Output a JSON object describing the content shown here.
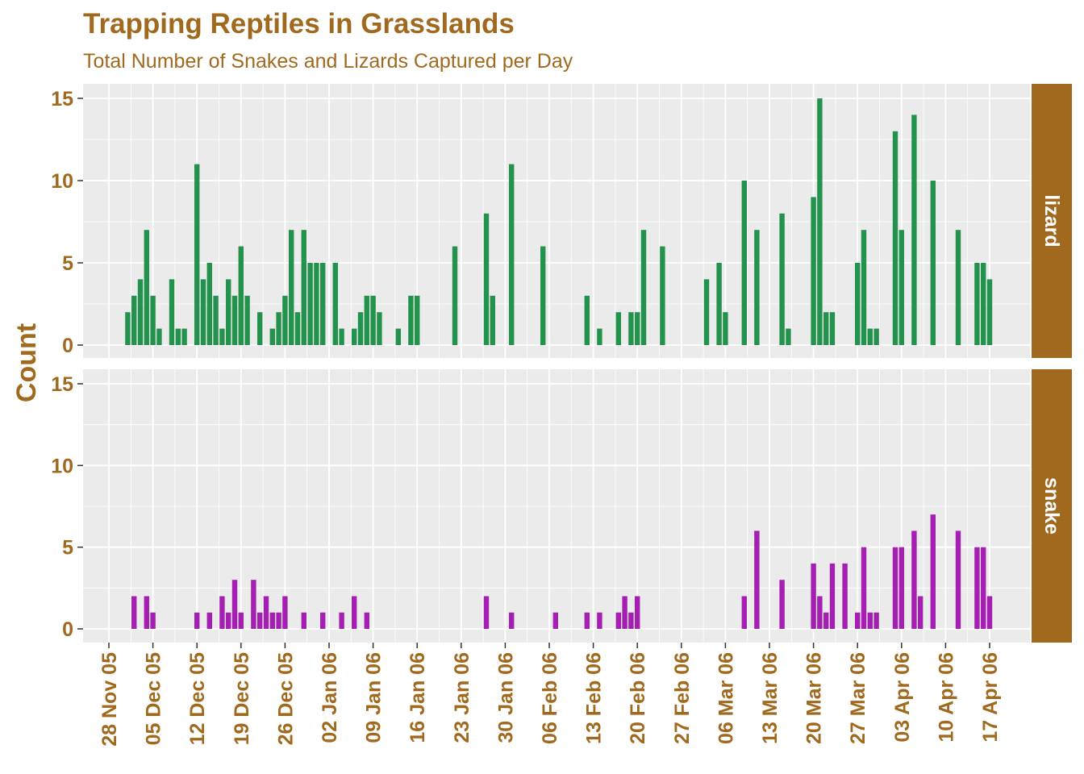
{
  "colors": {
    "text": "#A0691E",
    "panel_bg": "#EBEBEB",
    "grid": "#FFFFFF",
    "strip_bg": "#A0691E",
    "strip_text": "#FFFFFF",
    "lizard": "#22924C",
    "snake": "#A51FB2"
  },
  "chart_data": {
    "type": "bar",
    "title": "Trapping Reptiles in Grasslands",
    "subtitle": "Total Number of Snakes and Lizards Captured per Day",
    "xlabel": "",
    "ylabel": "Count",
    "ylim": [
      0,
      15
    ],
    "yticks": [
      0,
      5,
      10,
      15
    ],
    "xlim": [
      "2005-11-28",
      "2006-04-22"
    ],
    "xticks": [
      {
        "date": "2005-11-28",
        "label": "28 Nov 05"
      },
      {
        "date": "2005-12-05",
        "label": "05 Dec 05"
      },
      {
        "date": "2005-12-12",
        "label": "12 Dec 05"
      },
      {
        "date": "2005-12-19",
        "label": "19 Dec 05"
      },
      {
        "date": "2005-12-26",
        "label": "26 Dec 05"
      },
      {
        "date": "2006-01-02",
        "label": "02 Jan 06"
      },
      {
        "date": "2006-01-09",
        "label": "09 Jan 06"
      },
      {
        "date": "2006-01-16",
        "label": "16 Jan 06"
      },
      {
        "date": "2006-01-23",
        "label": "23 Jan 06"
      },
      {
        "date": "2006-01-30",
        "label": "30 Jan 06"
      },
      {
        "date": "2006-02-06",
        "label": "06 Feb 06"
      },
      {
        "date": "2006-02-13",
        "label": "13 Feb 06"
      },
      {
        "date": "2006-02-20",
        "label": "20 Feb 06"
      },
      {
        "date": "2006-02-27",
        "label": "27 Feb 06"
      },
      {
        "date": "2006-03-06",
        "label": "06 Mar 06"
      },
      {
        "date": "2006-03-13",
        "label": "13 Mar 06"
      },
      {
        "date": "2006-03-20",
        "label": "20 Mar 06"
      },
      {
        "date": "2006-03-27",
        "label": "27 Mar 06"
      },
      {
        "date": "2006-04-03",
        "label": "03 Apr 06"
      },
      {
        "date": "2006-04-10",
        "label": "10 Apr 06"
      },
      {
        "date": "2006-04-17",
        "label": "17 Apr 06"
      }
    ],
    "grid": true,
    "facets": [
      {
        "name": "lizard",
        "color_key": "lizard",
        "points": [
          [
            "2005-12-01",
            2
          ],
          [
            "2005-12-02",
            3
          ],
          [
            "2005-12-03",
            4
          ],
          [
            "2005-12-04",
            7
          ],
          [
            "2005-12-05",
            3
          ],
          [
            "2005-12-06",
            1
          ],
          [
            "2005-12-08",
            4
          ],
          [
            "2005-12-09",
            1
          ],
          [
            "2005-12-10",
            1
          ],
          [
            "2005-12-12",
            11
          ],
          [
            "2005-12-13",
            4
          ],
          [
            "2005-12-14",
            5
          ],
          [
            "2005-12-15",
            3
          ],
          [
            "2005-12-16",
            1
          ],
          [
            "2005-12-17",
            4
          ],
          [
            "2005-12-18",
            3
          ],
          [
            "2005-12-19",
            6
          ],
          [
            "2005-12-20",
            3
          ],
          [
            "2005-12-22",
            2
          ],
          [
            "2005-12-24",
            1
          ],
          [
            "2005-12-25",
            2
          ],
          [
            "2005-12-26",
            3
          ],
          [
            "2005-12-27",
            7
          ],
          [
            "2005-12-28",
            2
          ],
          [
            "2005-12-29",
            7
          ],
          [
            "2005-12-30",
            5
          ],
          [
            "2005-12-31",
            5
          ],
          [
            "2006-01-01",
            5
          ],
          [
            "2006-01-03",
            5
          ],
          [
            "2006-01-04",
            1
          ],
          [
            "2006-01-06",
            1
          ],
          [
            "2006-01-07",
            2
          ],
          [
            "2006-01-08",
            3
          ],
          [
            "2006-01-09",
            3
          ],
          [
            "2006-01-10",
            2
          ],
          [
            "2006-01-13",
            1
          ],
          [
            "2006-01-15",
            3
          ],
          [
            "2006-01-16",
            3
          ],
          [
            "2006-01-22",
            6
          ],
          [
            "2006-01-27",
            8
          ],
          [
            "2006-01-28",
            3
          ],
          [
            "2006-01-31",
            11
          ],
          [
            "2006-02-05",
            6
          ],
          [
            "2006-02-12",
            3
          ],
          [
            "2006-02-14",
            1
          ],
          [
            "2006-02-17",
            2
          ],
          [
            "2006-02-19",
            2
          ],
          [
            "2006-02-20",
            2
          ],
          [
            "2006-02-21",
            7
          ],
          [
            "2006-02-24",
            6
          ],
          [
            "2006-03-03",
            4
          ],
          [
            "2006-03-05",
            5
          ],
          [
            "2006-03-06",
            2
          ],
          [
            "2006-03-09",
            10
          ],
          [
            "2006-03-11",
            7
          ],
          [
            "2006-03-15",
            8
          ],
          [
            "2006-03-16",
            1
          ],
          [
            "2006-03-20",
            9
          ],
          [
            "2006-03-21",
            15
          ],
          [
            "2006-03-22",
            2
          ],
          [
            "2006-03-23",
            2
          ],
          [
            "2006-03-27",
            5
          ],
          [
            "2006-03-28",
            7
          ],
          [
            "2006-03-29",
            1
          ],
          [
            "2006-03-30",
            1
          ],
          [
            "2006-04-02",
            13
          ],
          [
            "2006-04-03",
            7
          ],
          [
            "2006-04-05",
            14
          ],
          [
            "2006-04-08",
            10
          ],
          [
            "2006-04-12",
            7
          ],
          [
            "2006-04-15",
            5
          ],
          [
            "2006-04-16",
            5
          ],
          [
            "2006-04-17",
            4
          ]
        ]
      },
      {
        "name": "snake",
        "color_key": "snake",
        "points": [
          [
            "2005-12-02",
            2
          ],
          [
            "2005-12-04",
            2
          ],
          [
            "2005-12-05",
            1
          ],
          [
            "2005-12-12",
            1
          ],
          [
            "2005-12-14",
            1
          ],
          [
            "2005-12-16",
            2
          ],
          [
            "2005-12-17",
            1
          ],
          [
            "2005-12-18",
            3
          ],
          [
            "2005-12-19",
            1
          ],
          [
            "2005-12-21",
            3
          ],
          [
            "2005-12-22",
            1
          ],
          [
            "2005-12-23",
            2
          ],
          [
            "2005-12-24",
            1
          ],
          [
            "2005-12-25",
            1
          ],
          [
            "2005-12-26",
            2
          ],
          [
            "2005-12-29",
            1
          ],
          [
            "2006-01-01",
            1
          ],
          [
            "2006-01-04",
            1
          ],
          [
            "2006-01-06",
            2
          ],
          [
            "2006-01-08",
            1
          ],
          [
            "2006-01-27",
            2
          ],
          [
            "2006-01-31",
            1
          ],
          [
            "2006-02-07",
            1
          ],
          [
            "2006-02-12",
            1
          ],
          [
            "2006-02-14",
            1
          ],
          [
            "2006-02-17",
            1
          ],
          [
            "2006-02-18",
            2
          ],
          [
            "2006-02-19",
            1
          ],
          [
            "2006-02-20",
            2
          ],
          [
            "2006-03-09",
            2
          ],
          [
            "2006-03-11",
            6
          ],
          [
            "2006-03-15",
            3
          ],
          [
            "2006-03-20",
            4
          ],
          [
            "2006-03-21",
            2
          ],
          [
            "2006-03-22",
            1
          ],
          [
            "2006-03-23",
            4
          ],
          [
            "2006-03-25",
            4
          ],
          [
            "2006-03-27",
            1
          ],
          [
            "2006-03-28",
            5
          ],
          [
            "2006-03-29",
            1
          ],
          [
            "2006-03-30",
            1
          ],
          [
            "2006-04-02",
            5
          ],
          [
            "2006-04-03",
            5
          ],
          [
            "2006-04-05",
            6
          ],
          [
            "2006-04-06",
            2
          ],
          [
            "2006-04-08",
            7
          ],
          [
            "2006-04-12",
            6
          ],
          [
            "2006-04-15",
            5
          ],
          [
            "2006-04-16",
            5
          ],
          [
            "2006-04-17",
            2
          ]
        ]
      }
    ]
  }
}
